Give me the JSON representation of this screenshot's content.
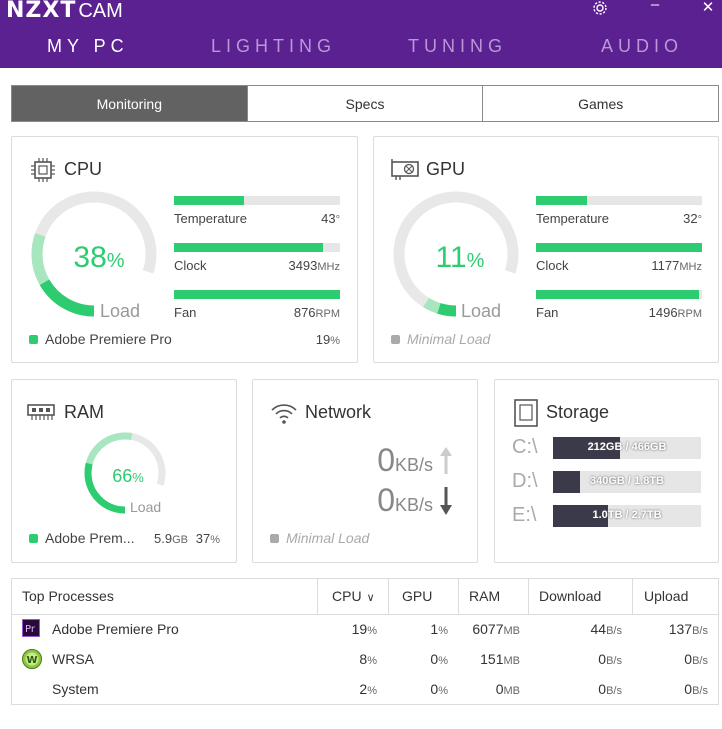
{
  "app": {
    "brand": "NZXT",
    "product": "CAM"
  },
  "nav": [
    "MY PC",
    "LIGHTING",
    "TUNING",
    "AUDIO"
  ],
  "tabs": [
    "Monitoring",
    "Specs",
    "Games"
  ],
  "cpu": {
    "title": "CPU",
    "load_pct": 38,
    "load_label": "Load",
    "temperature": {
      "label": "Temperature",
      "value": "43",
      "unit": "°",
      "level": 0.42
    },
    "clock": {
      "label": "Clock",
      "value": "3493",
      "unit": "MHz",
      "level": 0.9
    },
    "fan": {
      "label": "Fan",
      "value": "876",
      "unit": "RPM",
      "level": 1.0
    },
    "top_process": "Adobe Premiere Pro",
    "top_process_value": "19",
    "top_process_unit": "%"
  },
  "gpu": {
    "title": "GPU",
    "load_pct": 11,
    "load_label": "Load",
    "temperature": {
      "label": "Temperature",
      "value": "32",
      "unit": "°",
      "level": 0.31
    },
    "clock": {
      "label": "Clock",
      "value": "1177",
      "unit": "MHz",
      "level": 1.0
    },
    "fan": {
      "label": "Fan",
      "value": "1496",
      "unit": "RPM",
      "level": 0.98
    },
    "status": "Minimal Load"
  },
  "ram": {
    "title": "RAM",
    "load_pct": 66,
    "load_label": "Load",
    "top_process": "Adobe Prem...",
    "used": "5.9",
    "used_unit": "GB",
    "percent": "37",
    "percent_unit": "%"
  },
  "network": {
    "title": "Network",
    "up_value": "0",
    "up_unit": "KB/s",
    "down_value": "0",
    "down_unit": "KB/s",
    "status": "Minimal Load"
  },
  "storage": {
    "title": "Storage",
    "drives": [
      {
        "letter": "C:\\",
        "text": "212GB / 466GB",
        "level": 0.455
      },
      {
        "letter": "D:\\",
        "text": "340GB / 1.8TB",
        "level": 0.18
      },
      {
        "letter": "E:\\",
        "text": "1.0TB / 2.7TB",
        "level": 0.37
      }
    ]
  },
  "processes": {
    "headers": [
      "Top Processes",
      "CPU",
      "GPU",
      "RAM",
      "Download",
      "Upload"
    ],
    "rows": [
      {
        "name": "Adobe Premiere Pro",
        "icon": "premiere-pro-icon",
        "cpu": "19",
        "gpu": "1",
        "ram": "6077",
        "download": "44",
        "upload": "137"
      },
      {
        "name": "WRSA",
        "icon": "wrsa-icon",
        "cpu": "8",
        "gpu": "0",
        "ram": "151",
        "download": "0",
        "upload": "0"
      },
      {
        "name": "System",
        "icon": "",
        "cpu": "2",
        "gpu": "0",
        "ram": "0",
        "download": "0",
        "upload": "0"
      }
    ],
    "units": {
      "pct": "%",
      "mb": "MB",
      "rate": "B/s"
    }
  },
  "colors": {
    "brand": "#5c2191",
    "accent": "#2ecc71",
    "gauge_track": "#e8e8e8",
    "gauge_light": "#a8e6c0"
  }
}
